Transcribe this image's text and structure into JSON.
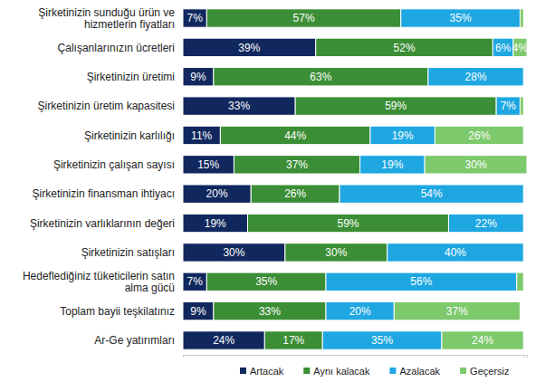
{
  "chart_data": {
    "type": "bar",
    "orientation": "horizontal",
    "stacked": true,
    "data_labels": true,
    "grid": false,
    "legend": "bottom",
    "tick_labels": "y",
    "categories": [
      "Şirketinizin sunduğu ürün ve hizmetlerin fiyatları",
      "Çalışanlarınızın ücretleri",
      "Şirketinizin üretimi",
      "Şirketinizin üretim kapasitesi",
      "Şirketinizin karlılığı",
      "Şirketinizin çalışan sayısı",
      "Şirketinizin finansman ihtiyacı",
      "Şirketinizin varlıklarının değeri",
      "Şirketinizin satışları",
      "Hedeflediğiniz tüketicilerin satın alma gücü",
      "Toplam bayii teşkilatınız",
      "Ar-Ge yatırımları"
    ],
    "xlim": [
      0,
      101
    ],
    "xticks": [
      0,
      100
    ],
    "series": [
      {
        "name": "Artacak",
        "color": "#11285e",
        "values": [
          7,
          39,
          9,
          33,
          11,
          15,
          20,
          19,
          30,
          7,
          9,
          24
        ],
        "value_labels": [
          "7%",
          "39%",
          "9%",
          "33%",
          "11%",
          "15%",
          "20%",
          "19%",
          "30%",
          "7%",
          "9%",
          "24%"
        ]
      },
      {
        "name": "Aynı kalacak",
        "color": "#3b8e35",
        "values": [
          57,
          52,
          63,
          59,
          44,
          37,
          26,
          59,
          30,
          35,
          33,
          17
        ],
        "value_labels": [
          "57%",
          "52%",
          "63%",
          "59%",
          "44%",
          "37%",
          "26%",
          "59%",
          "30%",
          "35%",
          "33%",
          "17%"
        ]
      },
      {
        "name": "Azalacak",
        "color": "#1ea7e1",
        "values": [
          35,
          6,
          28,
          7,
          19,
          19,
          54,
          22,
          40,
          56,
          20,
          35
        ],
        "value_labels": [
          "35%",
          "6%",
          "28%",
          "7%",
          "19%",
          "19%",
          "54%",
          "22%",
          "40%",
          "56%",
          "20%",
          "35%"
        ]
      },
      {
        "name": "Geçersiz",
        "color": "#7dc96b",
        "values": [
          1,
          4,
          0,
          1,
          26,
          30,
          0,
          0,
          0,
          2,
          37,
          24
        ],
        "value_labels": [
          null,
          "4%",
          null,
          null,
          "26%",
          "30%",
          null,
          null,
          null,
          null,
          "37%",
          "24%"
        ]
      }
    ]
  }
}
